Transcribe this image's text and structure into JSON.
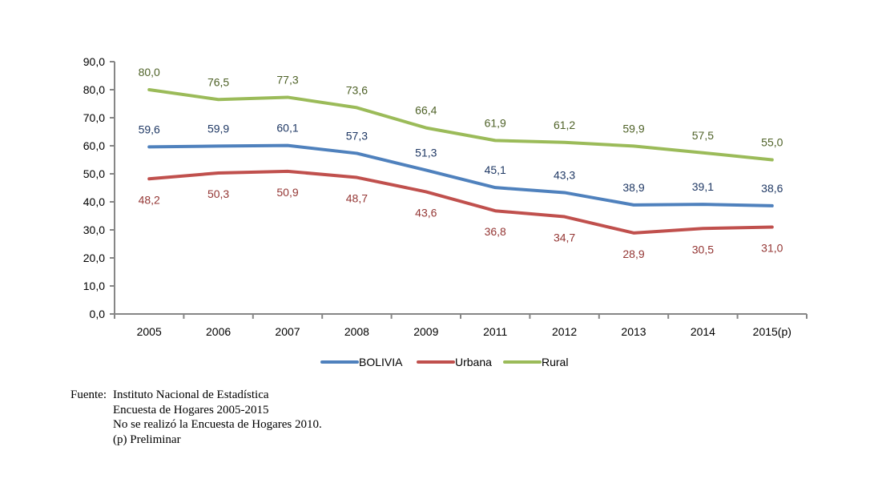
{
  "chart_data": {
    "type": "line",
    "title": "",
    "xlabel": "",
    "ylabel": "",
    "ylim": [
      0,
      90
    ],
    "yticks": [
      "0,0",
      "10,0",
      "20,0",
      "30,0",
      "40,0",
      "50,0",
      "60,0",
      "70,0",
      "80,0",
      "90,0"
    ],
    "ytick_values": [
      0,
      10,
      20,
      30,
      40,
      50,
      60,
      70,
      80,
      90
    ],
    "categories": [
      "2005",
      "2006",
      "2007",
      "2008",
      "2009",
      "2011",
      "2012",
      "2013",
      "2014",
      "2015(p)"
    ],
    "grid": false,
    "legend_position": "bottom",
    "series": [
      {
        "name": "BOLIVIA",
        "color": "#4F81BD",
        "label_color": "#1F3864",
        "label_pos": "above",
        "values": [
          59.6,
          59.9,
          60.1,
          57.3,
          51.3,
          45.1,
          43.3,
          38.9,
          39.1,
          38.6
        ],
        "labels": [
          "59,6",
          "59,9",
          "60,1",
          "57,3",
          "51,3",
          "45,1",
          "43,3",
          "38,9",
          "39,1",
          "38,6"
        ]
      },
      {
        "name": "Urbana",
        "color": "#C0504D",
        "label_color": "#943634",
        "label_pos": "below",
        "values": [
          48.2,
          50.3,
          50.9,
          48.7,
          43.6,
          36.8,
          34.7,
          28.9,
          30.5,
          31.0
        ],
        "labels": [
          "48,2",
          "50,3",
          "50,9",
          "48,7",
          "43,6",
          "36,8",
          "34,7",
          "28,9",
          "30,5",
          "31,0"
        ]
      },
      {
        "name": "Rural",
        "color": "#9BBB59",
        "label_color": "#4F6228",
        "label_pos": "above",
        "values": [
          80.0,
          76.5,
          77.3,
          73.6,
          66.4,
          61.9,
          61.2,
          59.9,
          57.5,
          55.0
        ],
        "labels": [
          "80,0",
          "76,5",
          "77,3",
          "73,6",
          "66,4",
          "61,9",
          "61,2",
          "59,9",
          "57,5",
          "55,0"
        ]
      }
    ]
  },
  "source": {
    "label": "Fuente:",
    "lines": [
      "Instituto Nacional de Estadística",
      "Encuesta de Hogares 2005-2015",
      "No se realizó la Encuesta de Hogares 2010.",
      "(p) Preliminar"
    ]
  }
}
